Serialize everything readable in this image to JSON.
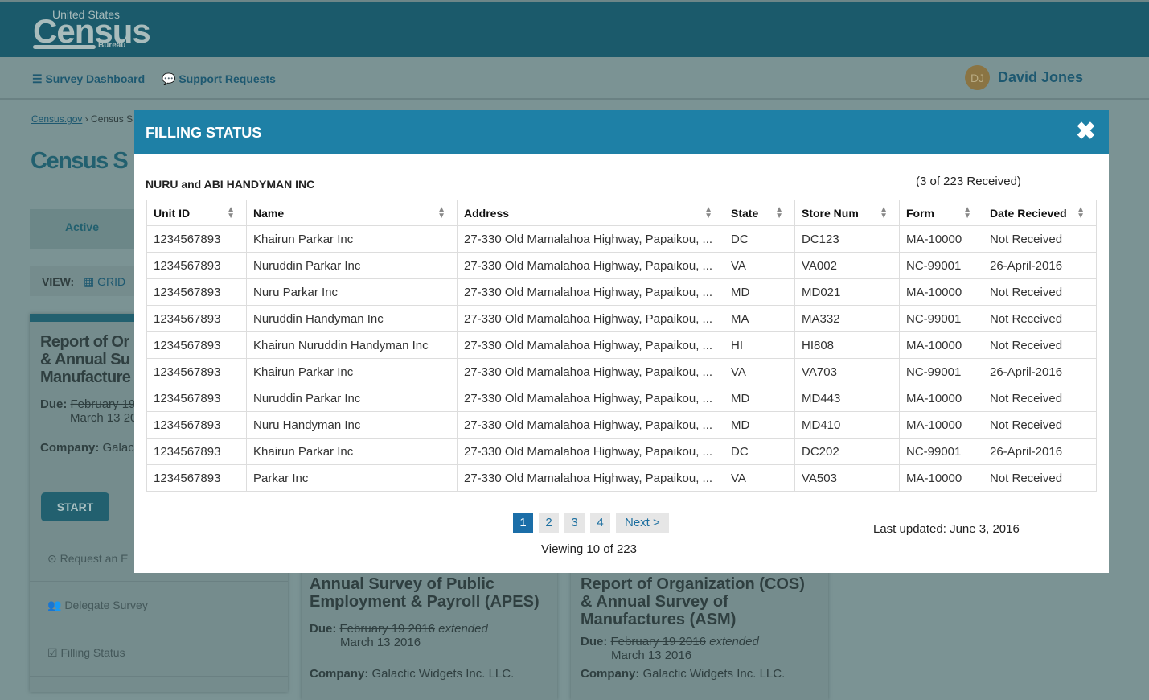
{
  "header": {
    "logo_top": "United States",
    "logo_main": "Census",
    "logo_bottom": "Bureau"
  },
  "nav": {
    "items": [
      {
        "label": "Survey Dashboard",
        "icon": "dashboard-icon"
      },
      {
        "label": "Support Requests",
        "icon": "chat-icon"
      }
    ],
    "user": {
      "initials": "DJ",
      "name": "David Jones"
    }
  },
  "background": {
    "breadcrumb_link": "Census.gov",
    "breadcrumb_rest": "› Census S",
    "page_title": "Census S",
    "tab_active": "Active",
    "view_label": "VIEW:",
    "view_grid": "GRID",
    "cards": [
      {
        "title": "Report of Or& Annual SuManufacture",
        "due_label": "Due:",
        "due_old": "February 19",
        "due_new": "March 13 20",
        "company_label": "Company:",
        "company": "Galac",
        "start": "START",
        "actions": [
          "Request an E",
          "Delegate Survey",
          "Filling Status"
        ]
      },
      {
        "title": "Annual Survey of Public Employment & Payroll (APES)",
        "due_label": "Due:",
        "due_old": "February 19 2016",
        "due_ext": "extended",
        "due_new": "March 13 2016",
        "company_label": "Company:",
        "company": "Galactic Widgets Inc. LLC."
      },
      {
        "title": "Report of Organization (COS) & Annual Survey of Manufactures (ASM)",
        "due_label": "Due:",
        "due_old": "February 19 2016",
        "due_ext": "extended",
        "due_new": "March 13 2016",
        "company_label": "Company:",
        "company": "Galactic Widgets Inc. LLC."
      }
    ]
  },
  "modal": {
    "title": "FILLING STATUS",
    "company": "NURU and ABI HANDYMAN INC",
    "received": "(3 of 223 Received)",
    "columns": [
      "Unit ID",
      "Name",
      "Address",
      "State",
      "Store Num",
      "Form",
      "Date Recieved"
    ],
    "rows": [
      [
        "1234567893",
        "Khairun Parkar Inc",
        "27-330 Old Mamalahoa Highway, Papaikou, ...",
        "DC",
        "DC123",
        "MA-10000",
        "Not Received"
      ],
      [
        "1234567893",
        "Nuruddin Parkar Inc",
        "27-330 Old Mamalahoa Highway, Papaikou, ...",
        "VA",
        "VA002",
        "NC-99001",
        "26-April-2016"
      ],
      [
        "1234567893",
        "Nuru Parkar Inc",
        "27-330 Old Mamalahoa Highway, Papaikou, ...",
        "MD",
        "MD021",
        "MA-10000",
        "Not Received"
      ],
      [
        "1234567893",
        "Nuruddin Handyman Inc",
        "27-330 Old Mamalahoa Highway, Papaikou, ...",
        "MA",
        "MA332",
        "NC-99001",
        "Not Received"
      ],
      [
        "1234567893",
        "Khairun Nuruddin Handyman Inc",
        "27-330 Old Mamalahoa Highway, Papaikou, ...",
        "HI",
        "HI808",
        "MA-10000",
        "Not Received"
      ],
      [
        "1234567893",
        "Khairun Parkar Inc",
        "27-330 Old Mamalahoa Highway, Papaikou, ...",
        "VA",
        "VA703",
        "NC-99001",
        "26-April-2016"
      ],
      [
        "1234567893",
        "Nuruddin Parkar Inc",
        "27-330 Old Mamalahoa Highway, Papaikou, ...",
        "MD",
        "MD443",
        "MA-10000",
        "Not Received"
      ],
      [
        "1234567893",
        "Nuru Handyman Inc",
        "27-330 Old Mamalahoa Highway, Papaikou, ...",
        "MD",
        "MD410",
        "MA-10000",
        "Not Received"
      ],
      [
        "1234567893",
        "Khairun Parkar Inc",
        "27-330 Old Mamalahoa Highway, Papaikou, ...",
        "DC",
        "DC202",
        "NC-99001",
        "26-April-2016"
      ],
      [
        "1234567893",
        "Parkar Inc",
        "27-330 Old Mamalahoa Highway, Papaikou, ...",
        "VA",
        "VA503",
        "MA-10000",
        "Not Received"
      ]
    ],
    "pages": [
      "1",
      "2",
      "3",
      "4"
    ],
    "current_page": "1",
    "next": "Next >",
    "viewing": "Viewing 10 of 223",
    "last_updated": "Last updated: June 3, 2016"
  },
  "colors": {
    "header": "#1b5a6b",
    "modal_header": "#1e80a6",
    "active_page": "#1b6ea8"
  }
}
